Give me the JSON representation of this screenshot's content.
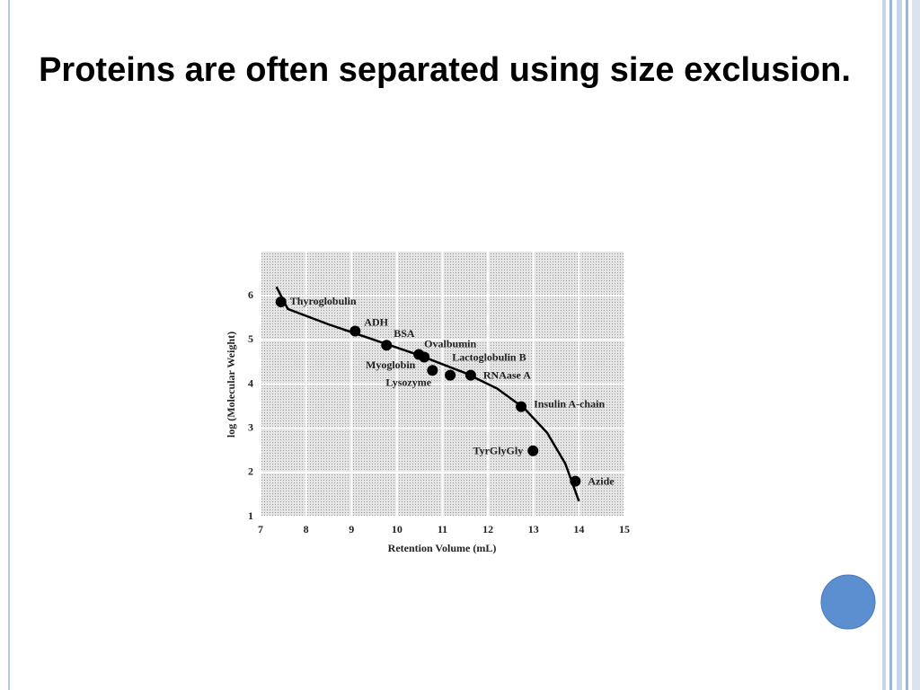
{
  "chart_data": {
    "type": "scatter",
    "title": "Proteins are often separated using size exclusion.",
    "xlabel": "Retention Volume (mL)",
    "ylabel": "log (Molecular Weight)",
    "labels": [
      "Thyroglobulin",
      "ADH",
      "BSA",
      "Ovalbumin",
      "Lactoglobulin B",
      "Myoglobin",
      "Lysozyme",
      "RNAase A",
      "Insulin A-chain",
      "TyrGlyGly",
      "Azide"
    ],
    "x": [
      7.45,
      9.08,
      9.77,
      10.48,
      10.6,
      10.78,
      11.17,
      11.62,
      12.73,
      12.99,
      13.92
    ],
    "y": [
      5.86,
      5.2,
      4.88,
      4.67,
      4.61,
      4.31,
      4.2,
      4.2,
      3.49,
      2.49,
      1.8
    ],
    "color": "#000000",
    "curve": {
      "x": [
        7.35,
        7.6,
        8.5,
        9.5,
        10.5,
        11.5,
        12.2,
        12.8,
        13.3,
        13.7,
        14.0
      ],
      "y": [
        6.2,
        5.7,
        5.35,
        5.0,
        4.65,
        4.25,
        3.9,
        3.45,
        2.9,
        2.2,
        1.35
      ]
    },
    "xlim": [
      7,
      15
    ],
    "xticks": [
      7,
      8,
      9,
      10,
      11,
      12,
      13,
      14,
      15
    ],
    "ylim": [
      1,
      7
    ],
    "yticks": [
      1,
      2,
      3,
      4,
      5,
      6
    ],
    "grid": true
  }
}
